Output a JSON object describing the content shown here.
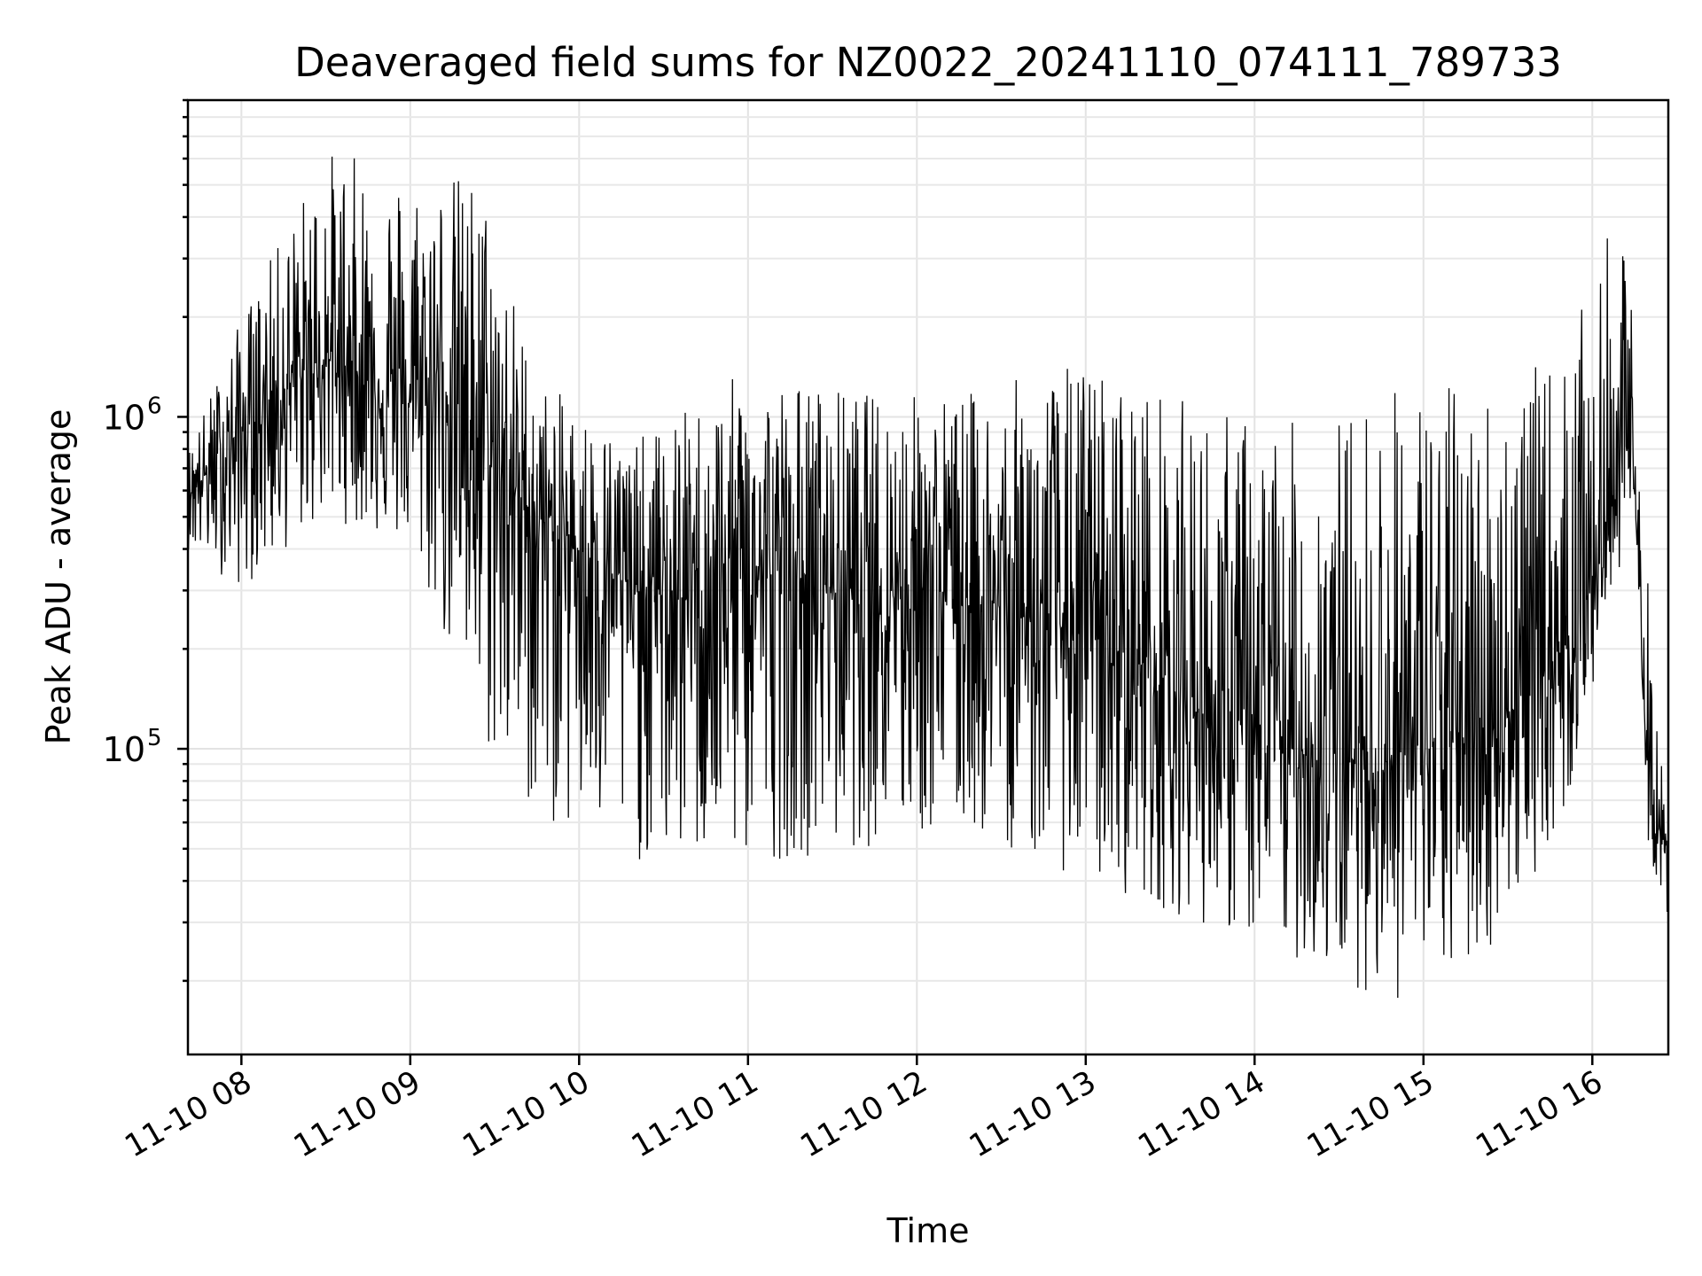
{
  "chart_data": {
    "type": "line",
    "title": "Deaveraged field sums for NZ0022_20241110_074111_789733",
    "xlabel": "Time",
    "ylabel": "Peak ADU - average",
    "y_scale": "log",
    "ylim": [
      12000,
      9000000
    ],
    "xlim": [
      "2024-11-10 07:41",
      "2024-11-10 16:27"
    ],
    "x_tick_labels": [
      "11-10 08",
      "11-10 09",
      "11-10 10",
      "11-10 11",
      "11-10 12",
      "11-10 13",
      "11-10 14",
      "11-10 15",
      "11-10 16"
    ],
    "y_tick_labels": [
      {
        "base": "10",
        "exp": "5",
        "value": 100000
      },
      {
        "base": "10",
        "exp": "6",
        "value": 1000000
      }
    ],
    "grid": true,
    "legend": "none",
    "line_color": "#000000",
    "series": [
      {
        "time": [
          "2024-11-10 07:41",
          "2024-11-10 07:50",
          "2024-11-10 08:00",
          "2024-11-10 08:10",
          "2024-11-10 08:20",
          "2024-11-10 08:30",
          "2024-11-10 08:40",
          "2024-11-10 08:50",
          "2024-11-10 09:00",
          "2024-11-10 09:10",
          "2024-11-10 09:20",
          "2024-11-10 09:30",
          "2024-11-10 09:45",
          "2024-11-10 10:00",
          "2024-11-10 10:20",
          "2024-11-10 10:40",
          "2024-11-10 11:00",
          "2024-11-10 11:20",
          "2024-11-10 11:40",
          "2024-11-10 12:00",
          "2024-11-10 12:20",
          "2024-11-10 12:40",
          "2024-11-10 13:00",
          "2024-11-10 13:20",
          "2024-11-10 13:40",
          "2024-11-10 14:00",
          "2024-11-10 14:20",
          "2024-11-10 14:40",
          "2024-11-10 15:00",
          "2024-11-10 15:20",
          "2024-11-10 15:40",
          "2024-11-10 15:55",
          "2024-11-10 16:05",
          "2024-11-10 16:10",
          "2024-11-10 16:15",
          "2024-11-10 16:20",
          "2024-11-10 16:27"
        ],
        "values": [
          600000,
          700000,
          900000,
          1100000,
          1300000,
          1500000,
          1400000,
          1200000,
          1100000,
          1300000,
          1000000,
          700000,
          500000,
          400000,
          300000,
          280000,
          350000,
          320000,
          300000,
          330000,
          280000,
          250000,
          220000,
          180000,
          130000,
          110000,
          95000,
          90000,
          100000,
          110000,
          150000,
          250000,
          400000,
          1000000,
          600000,
          70000,
          45000
        ],
        "envelope": {
          "time": [
            "2024-11-10 07:41",
            "2024-11-10 08:00",
            "2024-11-10 08:30",
            "2024-11-10 09:00",
            "2024-11-10 09:25",
            "2024-11-10 09:45",
            "2024-11-10 10:20",
            "2024-11-10 11:00",
            "2024-11-10 11:40",
            "2024-11-10 12:20",
            "2024-11-10 13:00",
            "2024-11-10 13:40",
            "2024-11-10 14:20",
            "2024-11-10 14:50",
            "2024-11-10 15:20",
            "2024-11-10 15:50",
            "2024-11-10 16:08",
            "2024-11-10 16:15",
            "2024-11-10 16:20",
            "2024-11-10 16:27"
          ],
          "high": [
            800000,
            2000000,
            6500000,
            5500000,
            5500000,
            1300000,
            850000,
            1400000,
            1200000,
            1200000,
            1500000,
            1100000,
            950000,
            1300000,
            1300000,
            1500000,
            4000000,
            2200000,
            300000,
            50000
          ],
          "low": [
            400000,
            300000,
            500000,
            400000,
            100000,
            60000,
            45000,
            45000,
            50000,
            55000,
            40000,
            30000,
            22000,
            17000,
            22000,
            60000,
            300000,
            600000,
            50000,
            30000
          ]
        }
      }
    ]
  }
}
